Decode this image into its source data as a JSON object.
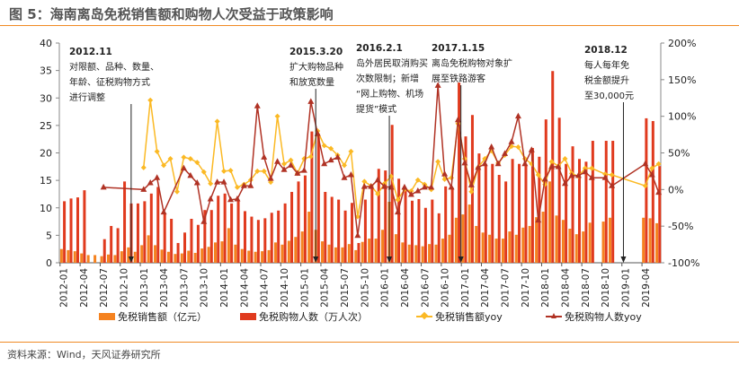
{
  "title": "图 5：海南离岛免税销售额和购物人次受益于政策影响",
  "source": "资料来源：Wind，天风证券研究所",
  "colors": {
    "sales": "#f5821f",
    "visits": "#e03a1e",
    "sales_yoy": "#fbb924",
    "visits_yoy": "#b03224",
    "axis": "#888888"
  },
  "annotations": [
    {
      "date": "2012.11",
      "lines": [
        "对限额、品种、数量、",
        "年龄、征税购物方式",
        "进行调整"
      ],
      "month_index": 10.4
    },
    {
      "date": "2015.3.20",
      "lines": [
        "扩大购物品种",
        "和放宽数量"
      ],
      "month_index": 38
    },
    {
      "date": "2016.2.1",
      "lines": [
        "岛外居民取消购买",
        "次数限制；新增",
        "“网上购物、机场",
        "提货”模式"
      ],
      "month_index": 49
    },
    {
      "date": "2017.1.15",
      "lines": [
        "离岛免税购物对象扩",
        "展至铁路游客"
      ],
      "month_index": 59.7
    },
    {
      "date": "2018.12",
      "lines": [
        "每人每年免",
        "税金额提升",
        "至30,000元"
      ],
      "month_index": 84
    }
  ],
  "chart_data": {
    "type": "bar+line",
    "title": "海南离岛免税销售额和购物人次受益于政策影响",
    "start_month": "2012-01",
    "x_tick_labels": [
      "2012-01",
      "2012-04",
      "2012-07",
      "2012-10",
      "2013-01",
      "2013-04",
      "2013-07",
      "2013-10",
      "2014-01",
      "2014-04",
      "2014-07",
      "2014-10",
      "2015-01",
      "2015-04",
      "2015-07",
      "2015-10",
      "2016-01",
      "2016-04",
      "2016-07",
      "2016-10",
      "2017-01",
      "2017-04",
      "2017-07",
      "2017-10",
      "2018-01",
      "2018-04",
      "2018-07",
      "2018-10",
      "2019-01",
      "2019-04"
    ],
    "left_axis": {
      "ylim": [
        0,
        40
      ],
      "ticks": [
        "0",
        "5",
        "10",
        "15",
        "20",
        "25",
        "30",
        "35",
        "40"
      ]
    },
    "right_axis": {
      "ylim": [
        -100,
        200
      ],
      "ticks": [
        "-100%",
        "-50%",
        "0%",
        "50%",
        "100%",
        "150%",
        "200%"
      ]
    },
    "legend_position": "bottom",
    "series": [
      {
        "name": "免税销售额（亿元）",
        "kind": "bar",
        "axis": "left",
        "values": [
          2.5,
          2.3,
          2.1,
          1.7,
          1.4,
          1.4,
          1.2,
          1.5,
          1.4,
          2.1,
          2.8,
          2.0,
          3.2,
          5.0,
          3.2,
          2.4,
          2.0,
          1.6,
          1.7,
          2.2,
          1.8,
          2.6,
          2.9,
          3.7,
          3.9,
          6.3,
          3.3,
          2.5,
          2.2,
          2.0,
          2.1,
          2.3,
          3.7,
          3.3,
          4.0,
          4.7,
          5.7,
          9.3,
          6.0,
          3.9,
          3.3,
          2.8,
          2.8,
          3.4,
          2.3,
          3.8,
          4.4,
          4.4,
          6.0,
          11.1,
          5.2,
          3.7,
          3.3,
          3.2,
          3.0,
          3.4,
          3.3,
          4.4,
          5.1,
          8.2,
          8.8,
          10.6,
          6.7,
          5.5,
          5.1,
          4.4,
          4.4,
          5.7,
          5.1,
          6.4,
          6.7,
          8.3,
          9.3,
          14.8,
          8.6,
          7.8,
          6.2,
          5.2,
          5.7,
          7.3,
          null,
          7.5,
          8.2,
          null,
          null,
          null,
          null,
          8.2,
          8.1,
          7.2
        ]
      },
      {
        "name": "免税购物人数（万人次）",
        "kind": "bar",
        "axis": "left",
        "values": [
          11.2,
          11.7,
          11.9,
          13.2,
          null,
          null,
          4.3,
          6.7,
          6.3,
          14.8,
          10.8,
          10.8,
          11.2,
          12.6,
          13.8,
          9.0,
          8.0,
          3.6,
          5.5,
          8.0,
          6.9,
          9.6,
          9.6,
          12.2,
          12.6,
          10.8,
          11.5,
          9.4,
          8.4,
          7.8,
          8.1,
          9.1,
          9.5,
          10.8,
          12.9,
          14.8,
          15.9,
          23.9,
          23.5,
          12.9,
          12.0,
          11.5,
          9.5,
          10.9,
          3.6,
          11.5,
          14.0,
          17.1,
          16.8,
          25.1,
          15.3,
          13.4,
          11.3,
          11.6,
          10.0,
          11.5,
          9.0,
          13.9,
          13.7,
          32.8,
          23.0,
          26.9,
          19.9,
          18.0,
          18.0,
          16.0,
          14.8,
          18.9,
          18.0,
          18.0,
          20.9,
          19.3,
          26.1,
          34.9,
          26.4,
          18.0,
          21.2,
          18.9,
          18.4,
          22.2,
          null,
          22.2,
          22.2,
          null,
          null,
          null,
          null,
          26.3,
          25.8,
          17.6
        ]
      },
      {
        "name": "免税销售额yoy",
        "kind": "line",
        "axis": "right",
        "values": [
          null,
          null,
          null,
          null,
          null,
          null,
          null,
          null,
          null,
          null,
          null,
          null,
          30,
          122,
          52,
          33,
          42,
          -3,
          44,
          42,
          37,
          24,
          8,
          93,
          25,
          26,
          3,
          7,
          13,
          25,
          25,
          10,
          100,
          35,
          40,
          22,
          42,
          45,
          80,
          60,
          56,
          47,
          33,
          52,
          -37,
          11,
          5,
          -6,
          8,
          18,
          -14,
          0,
          -2,
          13,
          7,
          0,
          38,
          14,
          16,
          90,
          42,
          -3,
          30,
          42,
          53,
          36,
          47,
          59,
          58,
          42,
          35,
          20,
          7,
          38,
          32,
          42,
          22,
          18,
          29,
          29,
          null,
          21,
          20,
          null,
          null,
          null,
          null,
          5,
          29,
          35
        ]
      },
      {
        "name": "免税购物人数yoy",
        "kind": "line",
        "axis": "right",
        "values": [
          null,
          null,
          null,
          null,
          null,
          null,
          3,
          null,
          null,
          null,
          null,
          null,
          0,
          9,
          16,
          -31,
          null,
          null,
          29,
          19,
          9,
          -44,
          -13,
          10,
          10,
          -14,
          -13,
          5,
          5,
          114,
          44,
          15,
          38,
          27,
          33,
          22,
          26,
          120,
          76,
          35,
          40,
          44,
          16,
          20,
          -63,
          4,
          4,
          13,
          4,
          3,
          -31,
          3,
          -7,
          -2,
          3,
          3,
          142,
          21,
          3,
          95,
          36,
          6,
          30,
          35,
          58,
          35,
          49,
          65,
          100,
          35,
          54,
          -42,
          14,
          31,
          31,
          8,
          19,
          19,
          24,
          16,
          null,
          16,
          5,
          null,
          null,
          null,
          null,
          35,
          20,
          -4
        ]
      }
    ]
  }
}
